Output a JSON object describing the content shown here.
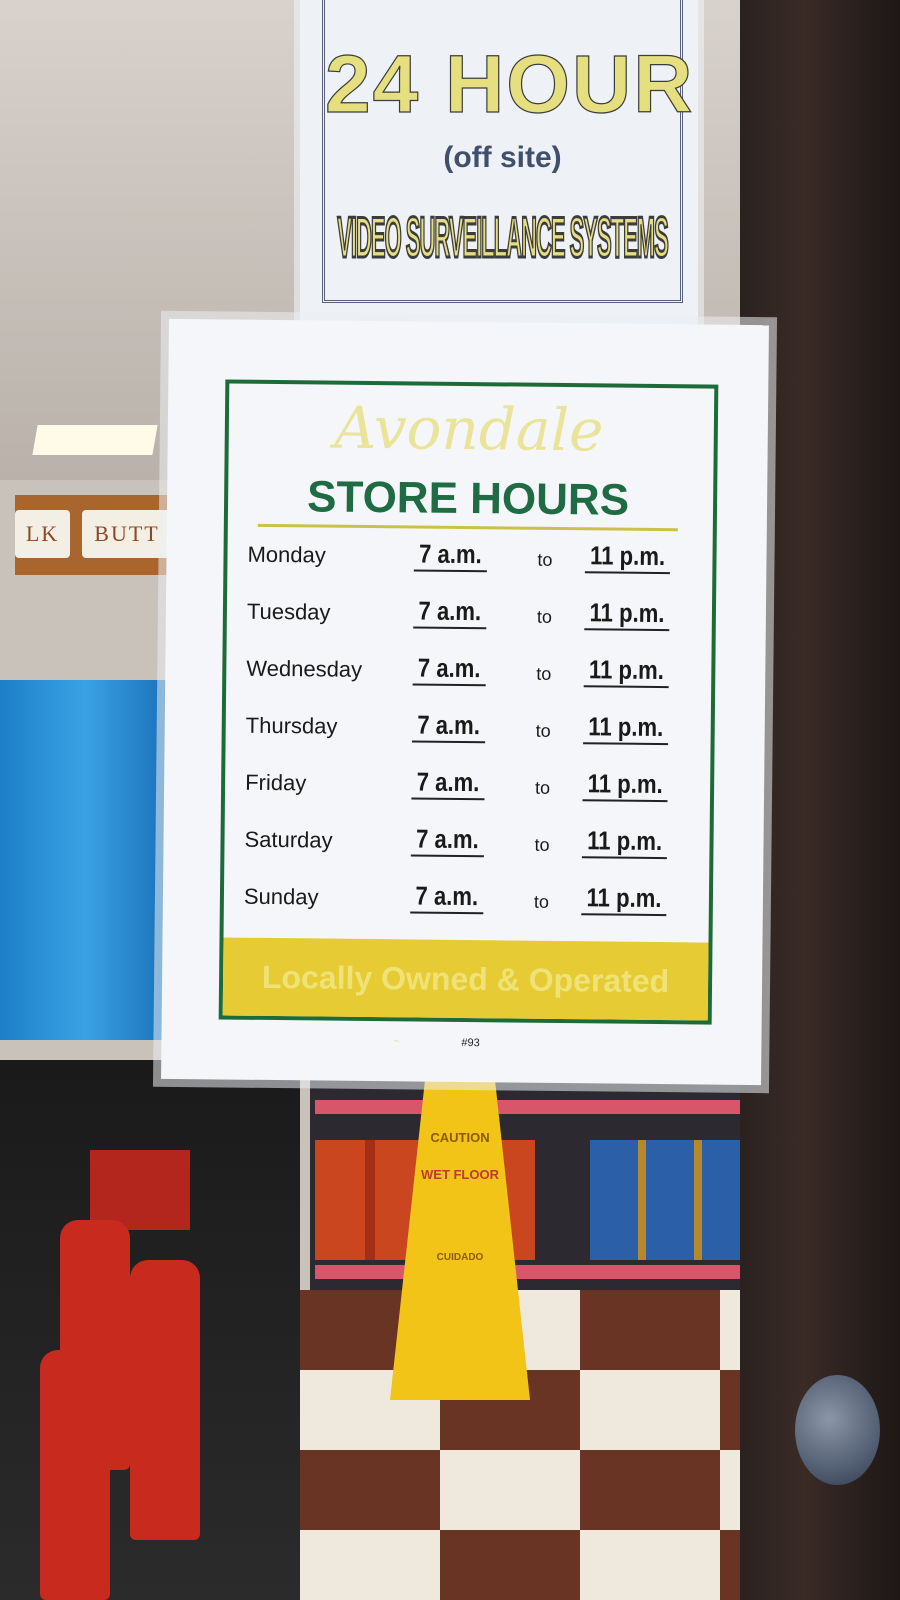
{
  "surveillance_sign": {
    "headline": "24 HOUR",
    "subline": "(off site)",
    "tagline": "VIDEO SURVEILLANCE SYSTEMS"
  },
  "hours_sign": {
    "brand": "Avondale",
    "title": "STORE HOURS",
    "separator": "to",
    "schedule": [
      {
        "day": "Monday",
        "open": "7 a.m.",
        "close": "11 p.m."
      },
      {
        "day": "Tuesday",
        "open": "7 a.m.",
        "close": "11 p.m."
      },
      {
        "day": "Wednesday",
        "open": "7 a.m.",
        "close": "11 p.m."
      },
      {
        "day": "Thursday",
        "open": "7 a.m.",
        "close": "11 p.m."
      },
      {
        "day": "Friday",
        "open": "7 a.m.",
        "close": "11 p.m."
      },
      {
        "day": "Saturday",
        "open": "7 a.m.",
        "close": "11 p.m."
      },
      {
        "day": "Sunday",
        "open": "7 a.m.",
        "close": "11 p.m."
      }
    ],
    "footer": "Locally Owned & Operated",
    "number": "#93"
  },
  "background": {
    "wall_labels": [
      "LK",
      "BUTT"
    ],
    "wet_floor_sign": [
      "CAUTION",
      "WET FLOOR",
      "CUIDADO"
    ]
  },
  "colors": {
    "sign_green": "#1e6b3a",
    "footer_yellow": "#e6cb34",
    "surveillance_yellow": "#e6df80"
  }
}
